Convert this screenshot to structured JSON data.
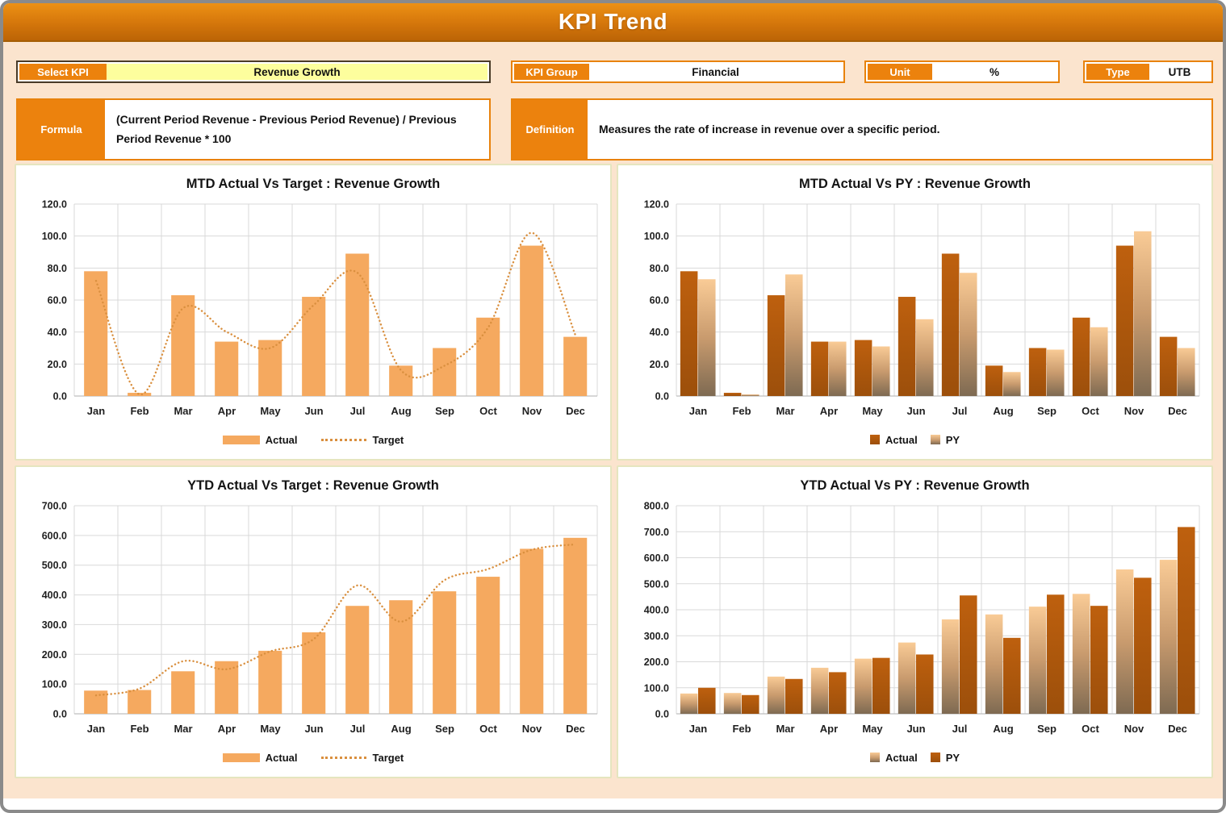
{
  "window": {
    "title": "KPI Trend"
  },
  "controls": {
    "select_kpi": {
      "label": "Select KPI",
      "value": "Revenue Growth"
    },
    "kpi_group": {
      "label": "KPI Group",
      "value": "Financial"
    },
    "unit": {
      "label": "Unit",
      "value": "%"
    },
    "type": {
      "label": "Type",
      "value": "UTB"
    },
    "formula": {
      "label": "Formula",
      "value": "(Current Period Revenue - Previous Period Revenue) / Previous Period Revenue * 100"
    },
    "definition": {
      "label": "Definition",
      "value": "Measures the rate of increase in revenue over a specific period."
    }
  },
  "colors": {
    "accent_orange": "#EC820D",
    "header_gradient_top": "#ED9114",
    "header_gradient_bottom": "#BC6406",
    "page_background": "#FBE4CE",
    "light_bar": "#F5A95F",
    "dark_bar": "#B55A0E",
    "gradient_bar_top": "#F9CB96",
    "gradient_bar_bottom": "#7E6A52",
    "target_dotted_line": "#D98F3E",
    "kpi_value_yellow": "#FDFE9D",
    "panel_border": "#E5E5BF"
  },
  "chart_data": [
    {
      "type": "bar",
      "title": "MTD Actual Vs Target : Revenue Growth",
      "categories": [
        "Jan",
        "Feb",
        "Mar",
        "Apr",
        "May",
        "Jun",
        "Jul",
        "Aug",
        "Sep",
        "Oct",
        "Nov",
        "Dec"
      ],
      "series": [
        {
          "name": "Actual",
          "type": "bar",
          "style": "light",
          "values": [
            78,
            2,
            63,
            34,
            35,
            62,
            89,
            19,
            30,
            49,
            94,
            37
          ]
        },
        {
          "name": "Target",
          "type": "line",
          "style": "dotted",
          "values": [
            72,
            1,
            55,
            40,
            30,
            57,
            77,
            16,
            19,
            43,
            102,
            38
          ]
        }
      ],
      "ylim": [
        0,
        120
      ],
      "ystep": 20,
      "grid": true,
      "legend_position": "bottom"
    },
    {
      "type": "bar",
      "title": "MTD Actual Vs PY : Revenue Growth",
      "categories": [
        "Jan",
        "Feb",
        "Mar",
        "Apr",
        "May",
        "Jun",
        "Jul",
        "Aug",
        "Sep",
        "Oct",
        "Nov",
        "Dec"
      ],
      "series": [
        {
          "name": "Actual",
          "type": "bar",
          "style": "dark",
          "values": [
            78,
            2,
            63,
            34,
            35,
            62,
            89,
            19,
            30,
            49,
            94,
            37
          ]
        },
        {
          "name": "PY",
          "type": "bar",
          "style": "gradient",
          "values": [
            73,
            1,
            76,
            34,
            31,
            48,
            77,
            15,
            29,
            43,
            103,
            30
          ]
        }
      ],
      "ylim": [
        0,
        120
      ],
      "ystep": 20,
      "grid": true,
      "legend_position": "bottom"
    },
    {
      "type": "bar",
      "title": "YTD Actual Vs Target : Revenue Growth",
      "categories": [
        "Jan",
        "Feb",
        "Mar",
        "Apr",
        "May",
        "Jun",
        "Jul",
        "Aug",
        "Sep",
        "Oct",
        "Nov",
        "Dec"
      ],
      "series": [
        {
          "name": "Actual",
          "type": "bar",
          "style": "light",
          "values": [
            78,
            80,
            143,
            177,
            212,
            274,
            363,
            382,
            412,
            461,
            555,
            592
          ]
        },
        {
          "name": "Target",
          "type": "line",
          "style": "dotted",
          "values": [
            62,
            85,
            177,
            150,
            210,
            252,
            432,
            310,
            450,
            487,
            552,
            570
          ]
        }
      ],
      "ylim": [
        0,
        700
      ],
      "ystep": 100,
      "grid": true,
      "legend_position": "bottom"
    },
    {
      "type": "bar",
      "title": "YTD Actual Vs PY : Revenue Growth",
      "categories": [
        "Jan",
        "Feb",
        "Mar",
        "Apr",
        "May",
        "Jun",
        "Jul",
        "Aug",
        "Sep",
        "Oct",
        "Nov",
        "Dec"
      ],
      "series": [
        {
          "name": "Actual",
          "type": "bar",
          "style": "gradient",
          "values": [
            78,
            80,
            143,
            177,
            212,
            274,
            363,
            382,
            412,
            461,
            555,
            592
          ]
        },
        {
          "name": "PY",
          "type": "bar",
          "style": "dark",
          "values": [
            100,
            72,
            134,
            160,
            215,
            228,
            455,
            292,
            458,
            415,
            523,
            718
          ]
        }
      ],
      "ylim": [
        0,
        800
      ],
      "ystep": 100,
      "grid": true,
      "legend_position": "bottom"
    }
  ]
}
